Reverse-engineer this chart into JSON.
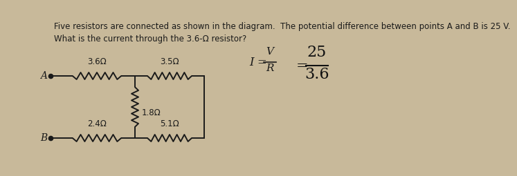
{
  "background_color": "#c8b99a",
  "paper_color": "#ede8df",
  "title_line1": "Five resistors are connected as shown in the diagram.  The potential difference between points A and B is 25 V.",
  "title_line2": "What is the current through the 3.6-Ω resistor?",
  "R1_label": "3.6Ω",
  "R2_label": "3.5Ω",
  "R3_label": "1.8Ω",
  "R4_label": "2.4Ω",
  "R5_label": "5.1Ω",
  "point_A": "A",
  "point_B": "B",
  "line_color": "#1a1a1a",
  "text_color": "#1a1a1a",
  "handwritten_color": "#111111"
}
